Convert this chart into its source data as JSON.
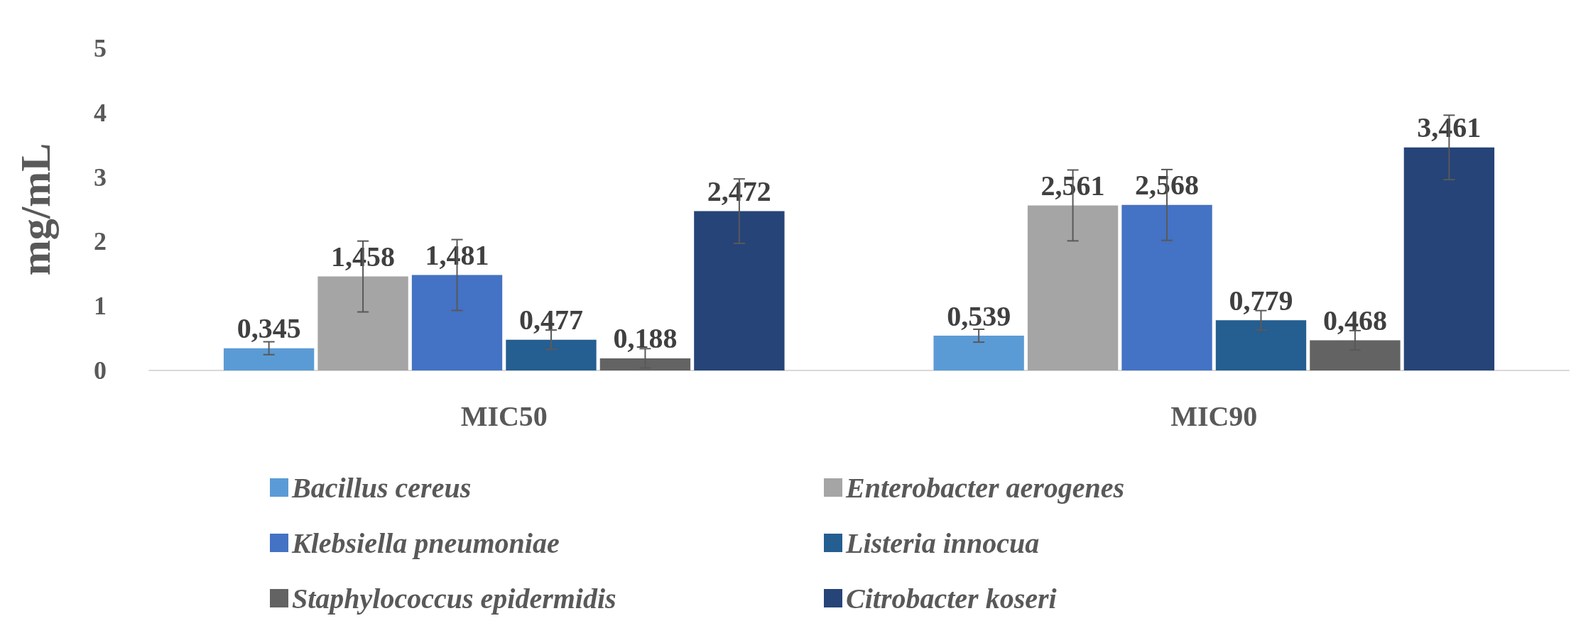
{
  "chart_data": {
    "type": "bar",
    "ylabel": "mg/mL",
    "categories": [
      "MIC50",
      "MIC90"
    ],
    "ylim": [
      0,
      5
    ],
    "yticks": [
      0,
      1,
      2,
      3,
      4,
      5
    ],
    "grid": false,
    "legend": "bottom",
    "series": [
      {
        "name": "Bacillus cereus",
        "color": "#5b9bd5",
        "values": [
          0.345,
          0.539
        ],
        "errors": [
          0.1,
          0.1
        ],
        "value_labels": [
          "0,345",
          "0,539"
        ]
      },
      {
        "name": "Enterobacter aerogenes",
        "color": "#a5a5a5",
        "values": [
          1.458,
          2.561
        ],
        "errors": [
          0.55,
          0.55
        ],
        "value_labels": [
          "1,458",
          "2,561"
        ]
      },
      {
        "name": "Klebsiella pneumoniae",
        "color": "#4472c4",
        "values": [
          1.481,
          2.568
        ],
        "errors": [
          0.55,
          0.55
        ],
        "value_labels": [
          "1,481",
          "2,568"
        ]
      },
      {
        "name": "Listeria innocua",
        "color": "#255e91",
        "values": [
          0.477,
          0.779
        ],
        "errors": [
          0.15,
          0.15
        ],
        "value_labels": [
          "0,477",
          "0,779"
        ]
      },
      {
        "name": "Staphylococcus epidermidis",
        "color": "#636363",
        "values": [
          0.188,
          0.468
        ],
        "errors": [
          0.15,
          0.15
        ],
        "value_labels": [
          "0,188",
          "0,468"
        ]
      },
      {
        "name": "Citrobacter koseri",
        "color": "#264478",
        "values": [
          2.472,
          3.461
        ],
        "errors": [
          0.5,
          0.5
        ],
        "value_labels": [
          "2,472",
          "3,461"
        ]
      }
    ]
  }
}
